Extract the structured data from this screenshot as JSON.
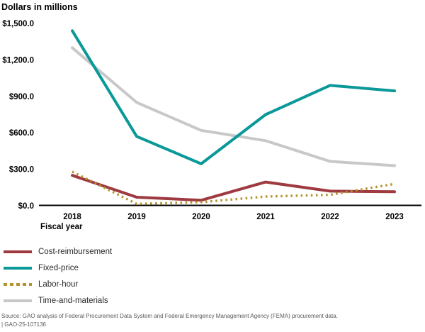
{
  "chart_data": {
    "type": "line",
    "title": "Dollars in millions",
    "xlabel": "Fiscal year",
    "categories": [
      "2018",
      "2019",
      "2020",
      "2021",
      "2022",
      "2023"
    ],
    "y_ticks": [
      {
        "label": "$1,500.0",
        "value": 1500
      },
      {
        "label": "$1,200.0",
        "value": 1200
      },
      {
        "label": "$900.0",
        "value": 900
      },
      {
        "label": "$600.0",
        "value": 600
      },
      {
        "label": "$300.0",
        "value": 300
      },
      {
        "label": "$0.0",
        "value": 0
      }
    ],
    "ylim": [
      0,
      1500
    ],
    "grid": false,
    "legend_position": "bottom-left",
    "series": [
      {
        "name": "Cost-reimbursement",
        "color": "#9e3a40",
        "style": "solid",
        "values": [
          250,
          70,
          45,
          195,
          120,
          115
        ]
      },
      {
        "name": "Fixed-price",
        "color": "#0a9899",
        "style": "solid",
        "values": [
          1440,
          570,
          345,
          750,
          990,
          945
        ]
      },
      {
        "name": "Labor-hour",
        "color": "#b3932c",
        "style": "dashed",
        "values": [
          280,
          15,
          30,
          75,
          90,
          180
        ]
      },
      {
        "name": "Time-and-materials",
        "color": "#c8c8c8",
        "style": "solid",
        "values": [
          1300,
          850,
          620,
          535,
          365,
          330
        ]
      }
    ],
    "axis_color": "#000000"
  },
  "source": {
    "line1": "Source: GAO analysis of Federal Procurement Data System and Federal Emergency Management Agency (FEMA) procurement data.",
    "line2": "|  GAO-25-107136"
  }
}
